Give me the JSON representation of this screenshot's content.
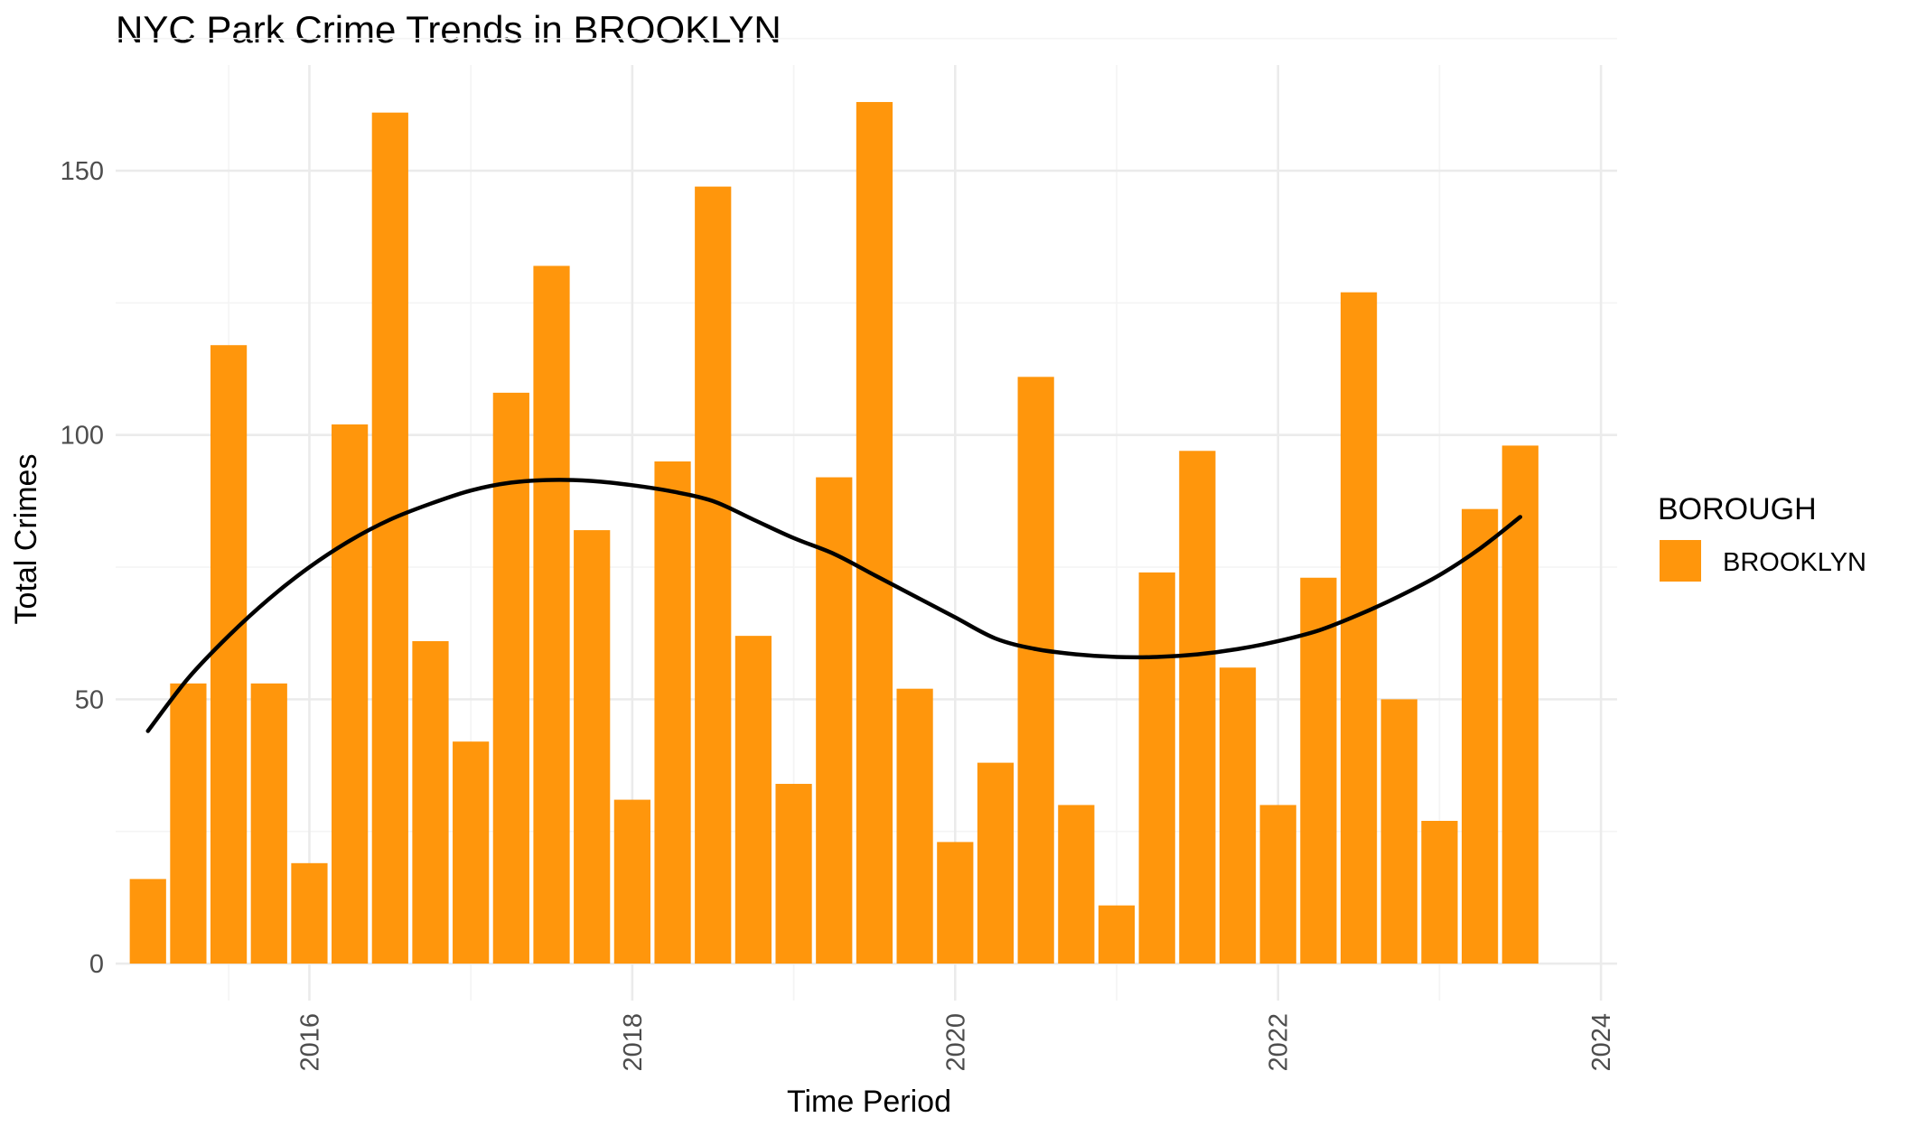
{
  "chart_data": {
    "type": "bar",
    "title": "NYC Park Crime Trends in BROOKLYN",
    "xlabel": "Time Period",
    "ylabel": "Total Crimes",
    "x_ticks": [
      "2016",
      "2018",
      "2020",
      "2022",
      "2024"
    ],
    "y_ticks": [
      "0",
      "50",
      "100",
      "150"
    ],
    "xlim": [
      2014.8,
      2024.1
    ],
    "ylim": [
      -7,
      170
    ],
    "grid": true,
    "legend": {
      "title": "BOROUGH",
      "position": "right",
      "entries": [
        "BROOKLYN"
      ]
    },
    "colors": {
      "bar": "#ff960c",
      "smooth": "#000000"
    },
    "x": [
      "2015 Q1",
      "2015 Q2",
      "2015 Q3",
      "2015 Q4",
      "2016 Q1",
      "2016 Q2",
      "2016 Q3",
      "2016 Q4",
      "2017 Q1",
      "2017 Q2",
      "2017 Q3",
      "2017 Q4",
      "2018 Q1",
      "2018 Q2",
      "2018 Q3",
      "2018 Q4",
      "2019 Q1",
      "2019 Q2",
      "2019 Q3",
      "2019 Q4",
      "2020 Q1",
      "2020 Q2",
      "2020 Q3",
      "2020 Q4",
      "2021 Q1",
      "2021 Q2",
      "2021 Q3",
      "2021 Q4",
      "2022 Q1",
      "2022 Q2",
      "2022 Q3",
      "2022 Q4",
      "2023 Q1",
      "2023 Q2",
      "2023 Q3"
    ],
    "x_numeric": [
      2015.0,
      2015.25,
      2015.5,
      2015.75,
      2016.0,
      2016.25,
      2016.5,
      2016.75,
      2017.0,
      2017.25,
      2017.5,
      2017.75,
      2018.0,
      2018.25,
      2018.5,
      2018.75,
      2019.0,
      2019.25,
      2019.5,
      2019.75,
      2020.0,
      2020.25,
      2020.5,
      2020.75,
      2021.0,
      2021.25,
      2021.5,
      2021.75,
      2022.0,
      2022.25,
      2022.5,
      2022.75,
      2023.0,
      2023.25,
      2023.5
    ],
    "series": [
      {
        "name": "BROOKLYN",
        "values": [
          16,
          53,
          117,
          53,
          19,
          102,
          161,
          61,
          42,
          108,
          132,
          82,
          31,
          95,
          147,
          62,
          34,
          92,
          163,
          52,
          23,
          38,
          111,
          30,
          11,
          74,
          97,
          56,
          30,
          73,
          127,
          50,
          27,
          86,
          98
        ]
      }
    ],
    "smooth_line": {
      "x": [
        2015.0,
        2015.25,
        2015.5,
        2015.75,
        2016.0,
        2016.25,
        2016.5,
        2016.75,
        2017.0,
        2017.25,
        2017.5,
        2017.75,
        2018.0,
        2018.25,
        2018.5,
        2018.75,
        2019.0,
        2019.25,
        2019.5,
        2019.75,
        2020.0,
        2020.25,
        2020.5,
        2020.75,
        2021.0,
        2021.25,
        2021.5,
        2021.75,
        2022.0,
        2022.25,
        2022.5,
        2022.75,
        2023.0,
        2023.25,
        2023.5
      ],
      "y": [
        44,
        54,
        62,
        69,
        75,
        80,
        84,
        87,
        89.5,
        91,
        91.5,
        91.3,
        90.5,
        89.3,
        87.5,
        84,
        80.5,
        77.5,
        73.5,
        69.5,
        65.5,
        61.5,
        59.5,
        58.5,
        58,
        58,
        58.5,
        59.5,
        61,
        63,
        66,
        69.5,
        73.5,
        78.5,
        84.5
      ]
    }
  }
}
